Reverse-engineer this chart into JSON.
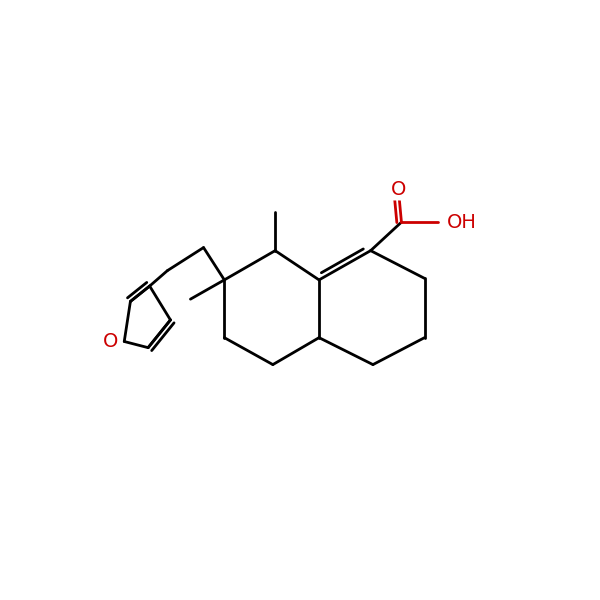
{
  "background_color": "#ffffff",
  "bond_color": "#000000",
  "heteroatom_color": "#cc0000",
  "bond_width": 2.0,
  "font_size": 14,
  "fig_width": 6.0,
  "fig_height": 6.0,
  "dpi": 100,
  "xlim": [
    0,
    10
  ],
  "ylim": [
    0,
    10
  ]
}
